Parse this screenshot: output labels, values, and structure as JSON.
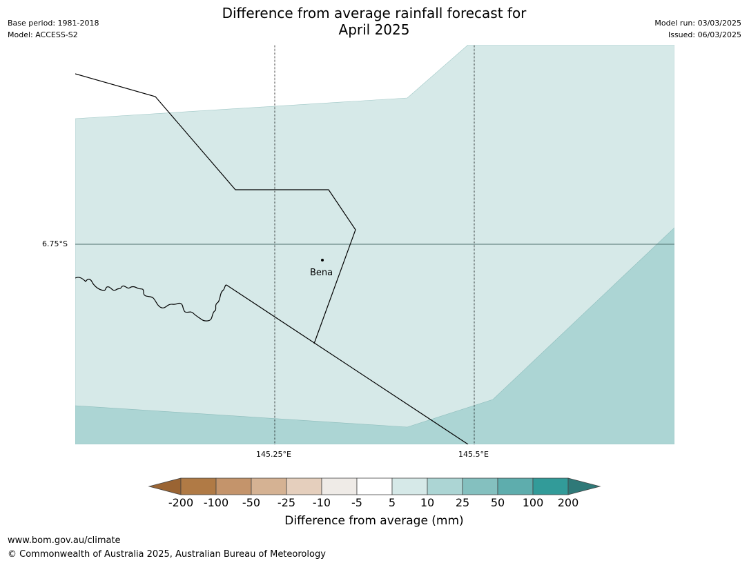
{
  "header": {
    "title_line1": "Difference from average rainfall forecast for",
    "title_line2": "April 2025",
    "base_period": "Base period: 1981-2018",
    "model": "Model: ACCESS-S2",
    "model_run": "Model run: 03/03/2025",
    "issued": "Issued: 06/03/2025"
  },
  "map": {
    "place_label": "Bena",
    "lat_labels": [
      "6.75°S"
    ],
    "lon_labels": [
      "145.25°E",
      "145.5°E"
    ]
  },
  "legend": {
    "title": "Difference from average (mm)",
    "ticks": [
      "-200",
      "-100",
      "-50",
      "-25",
      "-10",
      "-5",
      "5",
      "10",
      "25",
      "50",
      "100",
      "200"
    ],
    "colors": [
      "#9a6433",
      "#b07a45",
      "#c4946b",
      "#d5b293",
      "#e5cfbd",
      "#efebe7",
      "#ffffff",
      "#d6e9e8",
      "#acd5d4",
      "#84c0bf",
      "#5eadad",
      "#329b99",
      "#2f7978"
    ]
  },
  "footer": {
    "url": "www.bom.gov.au/climate",
    "copyright": "© Commonwealth of Australia 2025, Australian Bureau of Meteorology"
  }
}
